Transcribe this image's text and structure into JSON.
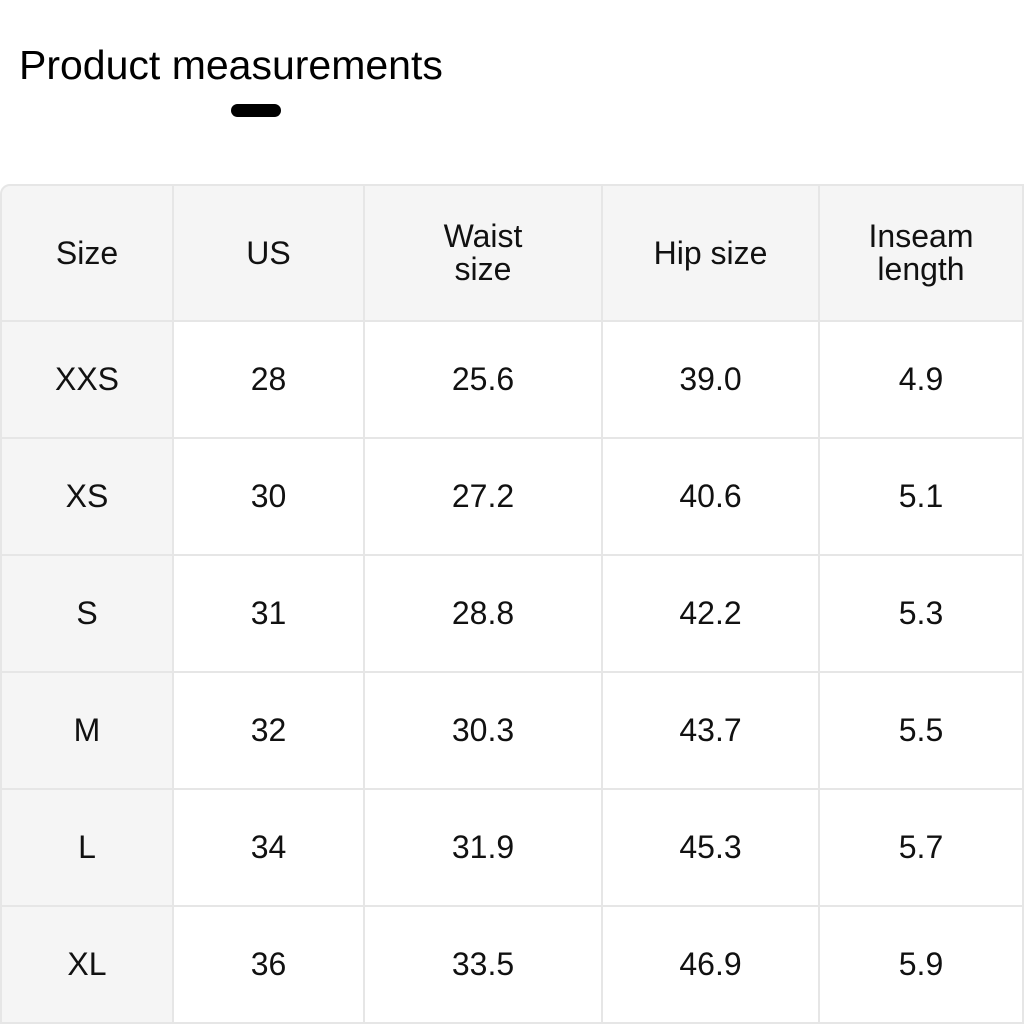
{
  "title": "Product measurements",
  "table": {
    "headers": [
      "Size",
      "US",
      "Waist size",
      "Hip size",
      "Inseam length"
    ],
    "rows": [
      [
        "XXS",
        "28",
        "25.6",
        "39.0",
        "4.9"
      ],
      [
        "XS",
        "30",
        "27.2",
        "40.6",
        "5.1"
      ],
      [
        "S",
        "31",
        "28.8",
        "42.2",
        "5.3"
      ],
      [
        "M",
        "32",
        "30.3",
        "43.7",
        "5.5"
      ],
      [
        "L",
        "34",
        "31.9",
        "45.3",
        "5.7"
      ],
      [
        "XL",
        "36",
        "33.5",
        "46.9",
        "5.9"
      ]
    ]
  }
}
